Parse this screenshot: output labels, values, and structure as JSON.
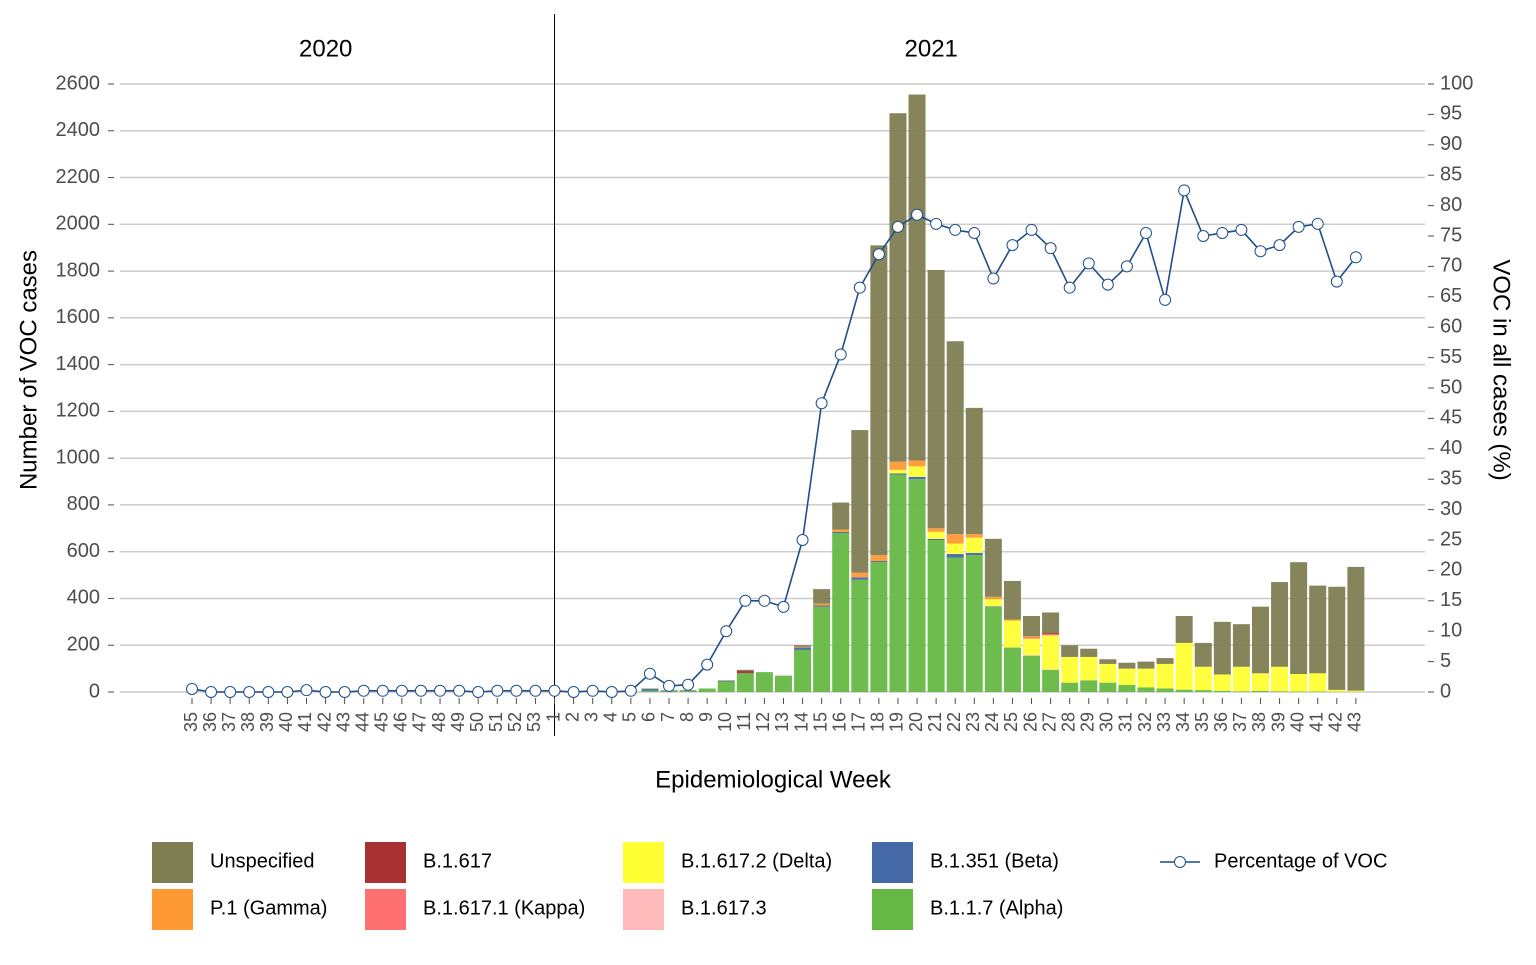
{
  "chart_data": {
    "type": "bar",
    "stacked": true,
    "panels": [
      "2020",
      "2021"
    ],
    "xlabel": "Epidemiological Week",
    "ylabel": "Number of VOC cases",
    "y2label": "VOC in all cases (%)",
    "categories": [
      "35",
      "36",
      "37",
      "38",
      "39",
      "40",
      "41",
      "42",
      "43",
      "44",
      "45",
      "46",
      "47",
      "48",
      "49",
      "50",
      "51",
      "52",
      "53",
      "1",
      "2",
      "3",
      "4",
      "5",
      "6",
      "7",
      "8",
      "9",
      "10",
      "11",
      "12",
      "13",
      "14",
      "15",
      "16",
      "17",
      "18",
      "19",
      "20",
      "21",
      "22",
      "23",
      "24",
      "25",
      "26",
      "27",
      "28",
      "29",
      "30",
      "31",
      "32",
      "33",
      "34",
      "35",
      "36",
      "37",
      "38",
      "39",
      "40",
      "41",
      "42",
      "43"
    ],
    "ylim": [
      0,
      2600
    ],
    "yticks": [
      0,
      200,
      400,
      600,
      800,
      1000,
      1200,
      1400,
      1600,
      1800,
      2000,
      2200,
      2400,
      2600
    ],
    "y2lim": [
      0,
      100
    ],
    "y2ticks": [
      0,
      5,
      10,
      15,
      20,
      25,
      30,
      35,
      40,
      45,
      50,
      55,
      60,
      65,
      70,
      75,
      80,
      85,
      90,
      95,
      100
    ],
    "grid": true,
    "series": [
      {
        "name": "Unspecified",
        "color": "#7f7d52",
        "values": [
          0,
          0,
          0,
          0,
          0,
          0,
          0,
          0,
          0,
          0,
          0,
          0,
          0,
          0,
          0,
          0,
          0,
          0,
          0,
          0,
          0,
          0,
          0,
          0,
          2,
          1,
          1,
          0,
          2,
          5,
          0,
          0,
          7,
          62,
          115,
          610,
          1325,
          1490,
          1565,
          1105,
          825,
          540,
          248,
          165,
          87,
          88,
          50,
          35,
          20,
          25,
          30,
          25,
          115,
          102,
          225,
          182,
          285,
          362,
          478,
          375,
          441,
          529
        ]
      },
      {
        "name": "P.1 (Gamma)",
        "color": "#ff9933",
        "values": [
          0,
          0,
          0,
          0,
          0,
          0,
          0,
          0,
          0,
          0,
          0,
          0,
          0,
          0,
          0,
          0,
          0,
          0,
          0,
          0,
          0,
          0,
          0,
          0,
          0,
          0,
          0,
          0,
          0,
          0,
          0,
          0,
          3,
          8,
          10,
          20,
          25,
          35,
          25,
          15,
          40,
          15,
          10,
          5,
          5,
          0,
          0,
          0,
          0,
          0,
          0,
          0,
          0,
          0,
          0,
          0,
          0,
          0,
          0,
          0,
          0,
          0
        ]
      },
      {
        "name": "B.1.617",
        "color": "#a83232",
        "values": [
          0,
          0,
          0,
          0,
          0,
          0,
          0,
          0,
          0,
          0,
          0,
          0,
          0,
          0,
          0,
          0,
          0,
          0,
          0,
          0,
          0,
          0,
          0,
          0,
          0,
          0,
          0,
          0,
          0,
          10,
          0,
          0,
          0,
          0,
          0,
          0,
          0,
          0,
          0,
          0,
          0,
          0,
          0,
          0,
          0,
          5,
          0,
          0,
          0,
          0,
          0,
          0,
          0,
          0,
          0,
          0,
          0,
          0,
          0,
          0,
          0,
          0
        ]
      },
      {
        "name": "B.1.617.1 (Kappa)",
        "color": "#ff7070",
        "values": [
          0,
          0,
          0,
          0,
          0,
          0,
          0,
          0,
          0,
          0,
          0,
          0,
          0,
          0,
          0,
          0,
          0,
          0,
          0,
          0,
          0,
          0,
          0,
          0,
          0,
          0,
          0,
          0,
          0,
          0,
          0,
          0,
          0,
          0,
          0,
          0,
          0,
          0,
          0,
          0,
          0,
          0,
          0,
          0,
          5,
          5,
          0,
          0,
          0,
          0,
          0,
          0,
          0,
          0,
          0,
          0,
          0,
          0,
          0,
          0,
          0,
          0
        ]
      },
      {
        "name": "B.1.617.2 (Delta)",
        "color": "#ffff33",
        "values": [
          0,
          0,
          0,
          0,
          0,
          0,
          0,
          0,
          0,
          0,
          0,
          0,
          0,
          0,
          0,
          0,
          0,
          0,
          0,
          0,
          0,
          0,
          0,
          0,
          0,
          0,
          0,
          0,
          0,
          0,
          0,
          0,
          0,
          0,
          0,
          0,
          0,
          15,
          45,
          30,
          45,
          65,
          30,
          115,
          70,
          145,
          110,
          100,
          80,
          70,
          80,
          105,
          200,
          100,
          70,
          105,
          75,
          105,
          75,
          78,
          8,
          5
        ]
      },
      {
        "name": "B.1.617.3",
        "color": "#ffbbbb",
        "values": [
          0,
          0,
          0,
          0,
          0,
          0,
          0,
          0,
          0,
          0,
          0,
          0,
          0,
          0,
          0,
          0,
          0,
          0,
          0,
          0,
          0,
          0,
          0,
          0,
          0,
          0,
          0,
          0,
          0,
          0,
          0,
          0,
          0,
          0,
          0,
          0,
          0,
          0,
          0,
          0,
          0,
          0,
          0,
          0,
          3,
          2,
          0,
          0,
          0,
          0,
          0,
          0,
          0,
          0,
          0,
          0,
          0,
          0,
          0,
          0,
          0,
          0
        ]
      },
      {
        "name": "B.1.351 (Beta)",
        "color": "#4568a6",
        "values": [
          0,
          0,
          0,
          0,
          0,
          0,
          0,
          0,
          0,
          0,
          0,
          0,
          0,
          0,
          0,
          0,
          0,
          0,
          0,
          0,
          0,
          0,
          0,
          0,
          8,
          2,
          2,
          0,
          3,
          0,
          0,
          0,
          10,
          5,
          5,
          10,
          5,
          5,
          10,
          5,
          15,
          10,
          2,
          0,
          0,
          0,
          0,
          0,
          0,
          0,
          0,
          0,
          0,
          0,
          0,
          0,
          0,
          0,
          0,
          0,
          0,
          0
        ]
      },
      {
        "name": "B.1.1.7 (Alpha)",
        "color": "#66b845",
        "values": [
          0,
          0,
          0,
          0,
          0,
          0,
          0,
          0,
          0,
          0,
          0,
          0,
          0,
          0,
          0,
          0,
          0,
          0,
          0,
          0,
          0,
          0,
          0,
          0,
          5,
          5,
          5,
          15,
          45,
          80,
          85,
          70,
          180,
          365,
          680,
          480,
          555,
          930,
          910,
          650,
          575,
          585,
          365,
          190,
          155,
          95,
          40,
          50,
          40,
          30,
          20,
          15,
          10,
          8,
          5,
          3,
          5,
          3,
          2,
          2,
          1,
          1
        ]
      },
      {
        "name": "Percentage of VOC",
        "type": "line",
        "axis": "y2",
        "color": "#1f4e8c",
        "values": [
          0.5,
          0,
          0,
          0,
          0,
          0,
          0.3,
          0,
          0,
          0.2,
          0.2,
          0.2,
          0.2,
          0.2,
          0.2,
          0,
          0.2,
          0.2,
          0.2,
          0.2,
          0,
          0.2,
          0,
          0.2,
          3,
          1,
          1.2,
          4.5,
          10,
          15,
          15,
          14,
          25,
          47.5,
          55.5,
          66.5,
          72,
          76.5,
          78.5,
          77,
          76,
          75.5,
          68,
          73.5,
          76,
          73,
          66.5,
          70.5,
          67,
          70,
          75.5,
          64.5,
          82.5,
          75,
          75.5,
          76,
          72.5,
          73.5,
          76.5,
          77,
          67.5,
          71.5
        ]
      }
    ]
  }
}
